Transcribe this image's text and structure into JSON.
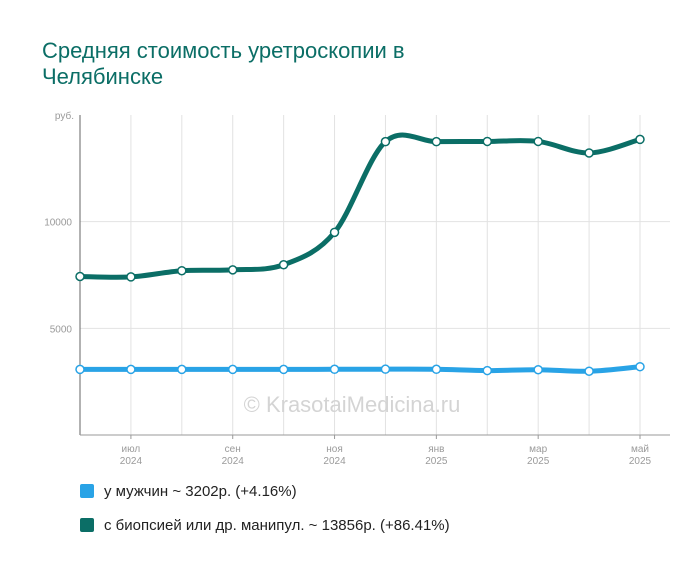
{
  "chart_data": {
    "type": "line",
    "title": "Средняя стоимость уретроскопии в Челябинске",
    "y_unit": "руб.",
    "ylim": [
      0,
      15000
    ],
    "y_ticks": [
      {
        "value": 5000,
        "label": "5000"
      },
      {
        "value": 10000,
        "label": "10000"
      }
    ],
    "x": [
      "2024-06",
      "2024-07",
      "2024-08",
      "2024-09",
      "2024-10",
      "2024-11",
      "2024-12",
      "2025-01",
      "2025-02",
      "2025-03",
      "2025-04",
      "2025-05"
    ],
    "x_tick_labels": [
      {
        "index": 1,
        "month": "июл",
        "year": "2024"
      },
      {
        "index": 3,
        "month": "сен",
        "year": "2024"
      },
      {
        "index": 5,
        "month": "ноя",
        "year": "2024"
      },
      {
        "index": 7,
        "month": "янв",
        "year": "2025"
      },
      {
        "index": 9,
        "month": "мар",
        "year": "2025"
      },
      {
        "index": 11,
        "month": "май",
        "year": "2025"
      }
    ],
    "grid": true,
    "series": [
      {
        "name": "у мужчин",
        "color": "#29a3e6",
        "legend": "у мужчин ~ 3202р. (+4.16%)",
        "values": [
          3075,
          3075,
          3075,
          3075,
          3075,
          3080,
          3085,
          3080,
          3020,
          3060,
          2990,
          3202
        ]
      },
      {
        "name": "с биопсией или др. манипул.",
        "color": "#0b6e66",
        "legend": "с биопсией или др. манипул. ~ 13856р. (+86.41%)",
        "values": [
          7430,
          7410,
          7700,
          7740,
          7980,
          9500,
          13750,
          13750,
          13760,
          13760,
          13220,
          13856
        ]
      }
    ],
    "watermark": "© KrasotaiMedicina.ru",
    "legend_position": "bottom"
  }
}
